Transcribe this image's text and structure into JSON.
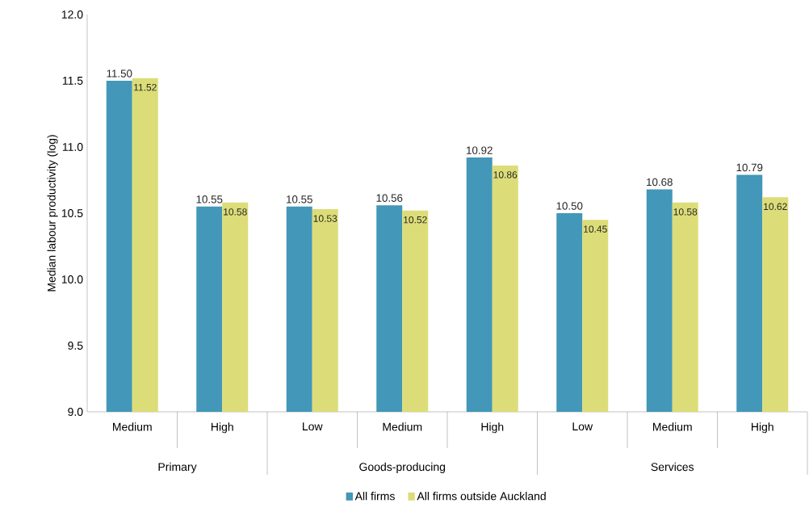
{
  "chart_data": {
    "type": "bar",
    "ylabel": "Median labour productivity (log)",
    "categories": [
      "Medium",
      "High",
      "Low",
      "Medium",
      "High",
      "Low",
      "Medium",
      "High"
    ],
    "series": [
      {
        "name": "All firms",
        "color": "#4397b8",
        "values": [
          11.5,
          10.55,
          10.55,
          10.56,
          10.92,
          10.5,
          10.68,
          10.79
        ],
        "value_labels": [
          "11.50",
          "10.55",
          "10.55",
          "10.56",
          "10.92",
          "10.50",
          "10.68",
          "10.79"
        ]
      },
      {
        "name": "All firms outside Auckland",
        "color": "#dcdd78",
        "values": [
          11.52,
          10.58,
          10.53,
          10.52,
          10.86,
          10.45,
          10.58,
          10.62
        ],
        "value_labels": [
          "11.52",
          "10.58",
          "10.53",
          "10.52",
          "10.86",
          "10.45",
          "10.58",
          "10.62"
        ]
      }
    ],
    "annotations": [
      "Primary",
      "Goods-producing",
      "Services"
    ],
    "ylim": [
      9.0,
      12.0
    ],
    "yticks": [
      {
        "value": 9.0,
        "label": "9.0"
      },
      {
        "value": 9.5,
        "label": "9.5"
      },
      {
        "value": 10.0,
        "label": "10.0"
      },
      {
        "value": 10.5,
        "label": "10.5"
      },
      {
        "value": 11.0,
        "label": "11.0"
      },
      {
        "value": 11.5,
        "label": "11.5"
      },
      {
        "value": 12.0,
        "label": "12.0"
      }
    ],
    "grid": false,
    "legend": "bottom"
  }
}
